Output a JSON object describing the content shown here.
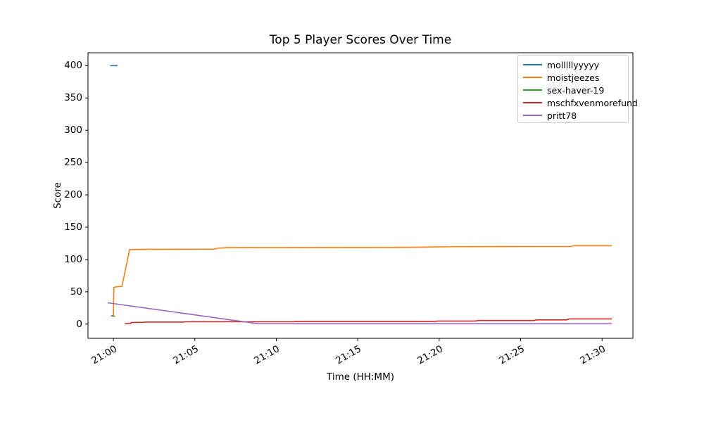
{
  "chart_data": {
    "type": "line",
    "title": "Top 5 Player Scores Over Time",
    "xlabel": "Time (HH:MM)",
    "ylabel": "Score",
    "x_unit": "minutes after 21:00",
    "xlim": [
      -1.56,
      31.89
    ],
    "ylim": [
      -22,
      420
    ],
    "grid": false,
    "legend_position": "upper right",
    "yticks": [
      0,
      50,
      100,
      150,
      200,
      250,
      300,
      350,
      400
    ],
    "xticks": [
      {
        "minute": 0,
        "label": "21:00"
      },
      {
        "minute": 5,
        "label": "21:05"
      },
      {
        "minute": 10,
        "label": "21:10"
      },
      {
        "minute": 15,
        "label": "21:15"
      },
      {
        "minute": 20,
        "label": "21:20"
      },
      {
        "minute": 25,
        "label": "21:25"
      },
      {
        "minute": 30,
        "label": "21:30"
      }
    ],
    "series": [
      {
        "name": "molllllyyyyy",
        "color": "#1f77b4",
        "points": [
          [
            -0.2,
            400
          ],
          [
            0.25,
            400
          ]
        ]
      },
      {
        "name": "moistjeezes",
        "color": "#ff7f0e",
        "points": [
          [
            -0.1,
            13
          ],
          [
            0,
            13
          ],
          [
            0.03,
            57
          ],
          [
            0.3,
            58
          ],
          [
            0.52,
            58
          ],
          [
            1.0,
            115.5
          ],
          [
            2,
            115.8
          ],
          [
            6.2,
            116
          ],
          [
            6.4,
            117.5
          ],
          [
            7,
            118.3
          ],
          [
            9,
            118.5
          ],
          [
            18,
            118.8
          ],
          [
            19.5,
            119.3
          ],
          [
            21,
            119.8
          ],
          [
            24,
            120
          ],
          [
            28.1,
            120.2
          ],
          [
            28.3,
            121.3
          ],
          [
            30.6,
            121.3
          ]
        ]
      },
      {
        "name": "sex-haver-19",
        "color": "#2ca02c",
        "points": [
          [
            -0.15,
            13
          ],
          [
            0.1,
            12
          ]
        ]
      },
      {
        "name": "mschfxvenmorefund",
        "color": "#d62728",
        "points": [
          [
            0.7,
            0.5
          ],
          [
            1.05,
            0.8
          ],
          [
            1.1,
            2.5
          ],
          [
            1.8,
            2.8
          ],
          [
            2.0,
            3.2
          ],
          [
            4.3,
            3.2
          ],
          [
            4.4,
            3.6
          ],
          [
            11,
            3.6
          ],
          [
            11.2,
            4.0
          ],
          [
            19.7,
            4.0
          ],
          [
            19.9,
            4.8
          ],
          [
            22.2,
            4.8
          ],
          [
            22.4,
            5.5
          ],
          [
            25.8,
            5.5
          ],
          [
            26.0,
            6.5
          ],
          [
            27.8,
            6.5
          ],
          [
            28.0,
            8.0
          ],
          [
            30.6,
            8.0
          ]
        ]
      },
      {
        "name": "pritt78",
        "color": "#9467bd",
        "points": [
          [
            -0.35,
            33
          ],
          [
            8.9,
            0.5
          ],
          [
            30.6,
            0.5
          ]
        ]
      }
    ]
  }
}
